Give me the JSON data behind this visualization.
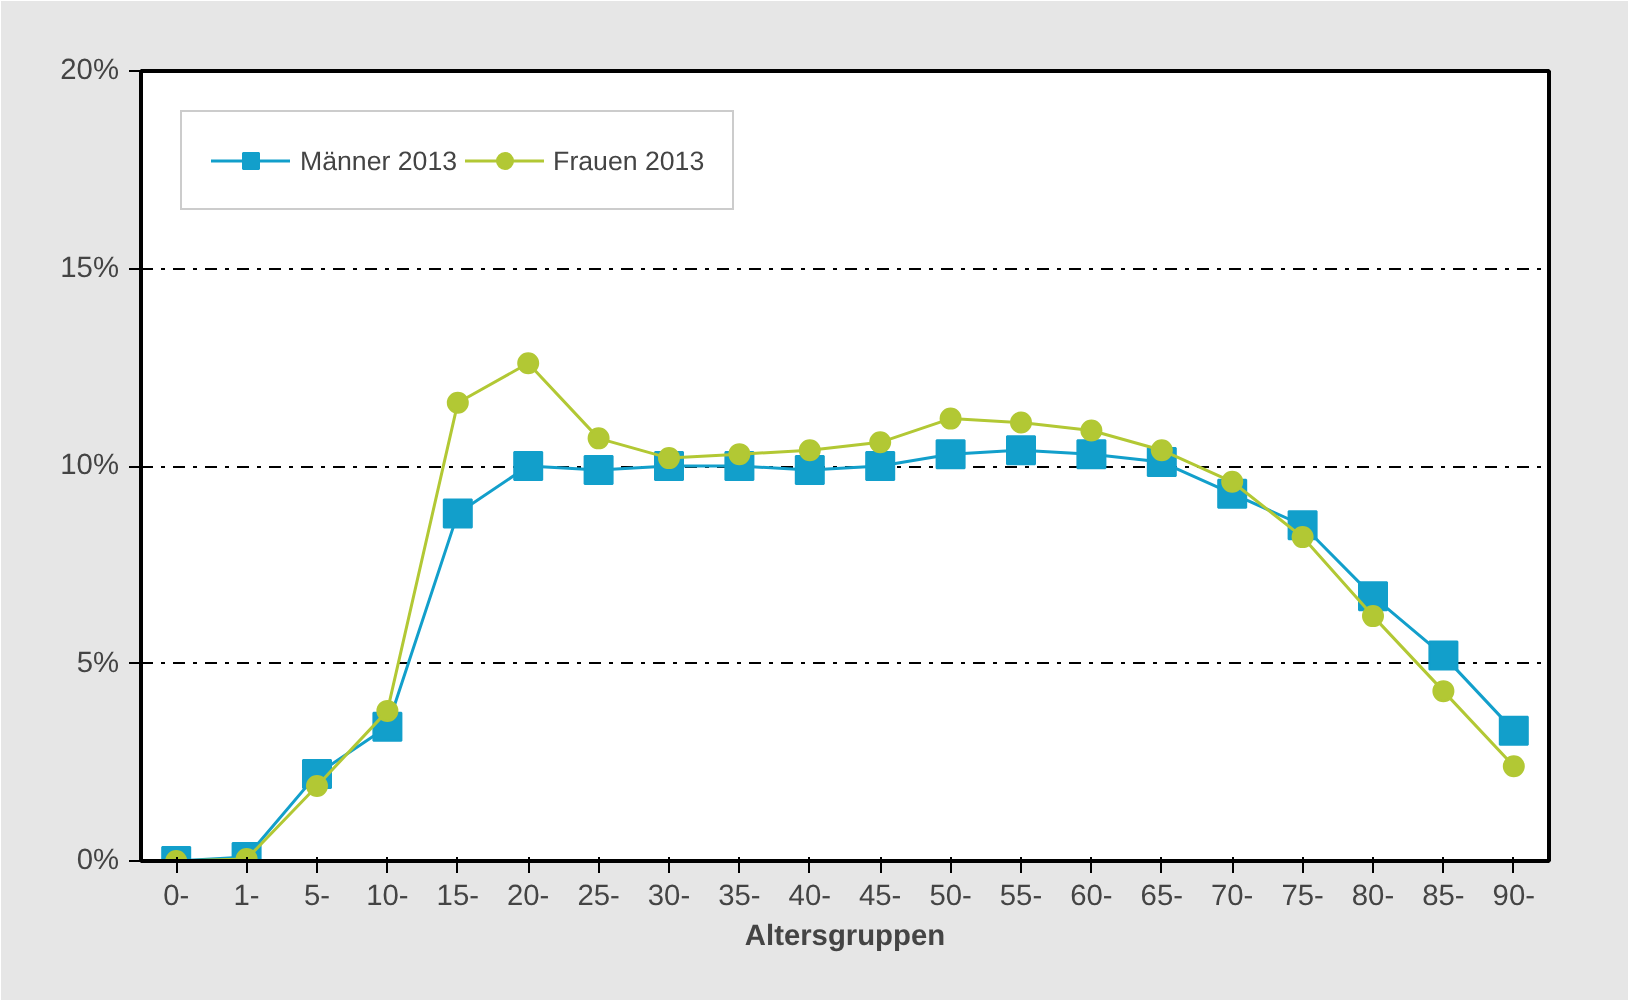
{
  "chart_data": {
    "type": "line",
    "xlabel": "Altersgruppen",
    "categories": [
      "0-",
      "1-",
      "5-",
      "10-",
      "15-",
      "20-",
      "25-",
      "30-",
      "35-",
      "40-",
      "45-",
      "50-",
      "55-",
      "60-",
      "65-",
      "70-",
      "75-",
      "80-",
      "85-",
      "90-"
    ],
    "series": [
      {
        "name": "Männer 2013",
        "color": "#129fcb",
        "marker": "square",
        "values": [
          0,
          0.1,
          2.2,
          3.4,
          8.8,
          10.0,
          9.9,
          10.0,
          10.0,
          9.9,
          10.0,
          10.3,
          10.4,
          10.3,
          10.1,
          9.3,
          8.5,
          6.7,
          5.2,
          3.3
        ]
      },
      {
        "name": "Frauen 2013",
        "color": "#b2c834",
        "marker": "circle",
        "values": [
          0,
          0.05,
          1.9,
          3.8,
          11.6,
          12.6,
          10.7,
          10.2,
          10.3,
          10.4,
          10.6,
          11.2,
          11.1,
          10.9,
          10.4,
          9.6,
          8.2,
          6.2,
          4.3,
          2.4
        ]
      }
    ],
    "ylim": [
      0,
      20
    ],
    "yticks": [
      {
        "value": 0,
        "label": "0%"
      },
      {
        "value": 5,
        "label": "5%"
      },
      {
        "value": 10,
        "label": "10%"
      },
      {
        "value": 15,
        "label": "15%"
      },
      {
        "value": 20,
        "label": "20%"
      }
    ],
    "grid": "y",
    "legend": "top left",
    "line_style": "solid"
  }
}
